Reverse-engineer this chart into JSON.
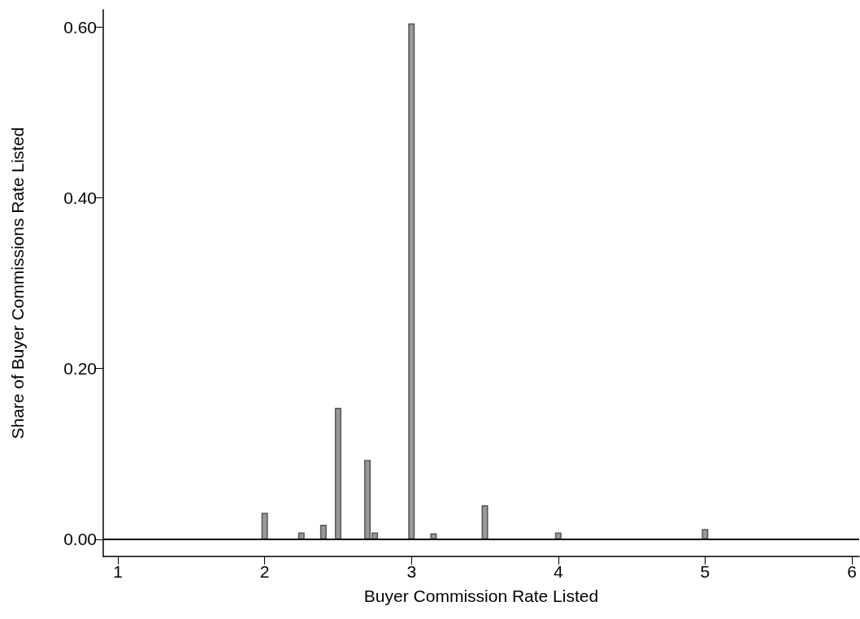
{
  "chart_data": {
    "type": "bar",
    "xlabel": "Buyer Commission Rate Listed",
    "ylabel": "Share of Buyer Commissions Rate Listed",
    "x": [
      2,
      2.25,
      2.4,
      2.5,
      2.7,
      2.75,
      3,
      3.15,
      3.5,
      4,
      5
    ],
    "values": [
      0.031,
      0.008,
      0.017,
      0.154,
      0.093,
      0.008,
      0.604,
      0.007,
      0.04,
      0.008,
      0.012
    ],
    "color": "#999999",
    "xlim": [
      0.9,
      6.05
    ],
    "xticks": [
      1,
      2,
      3,
      4,
      5,
      6
    ],
    "ylim": [
      -0.02,
      0.62
    ],
    "yticks": [
      {
        "value": 0,
        "label": "0.00"
      },
      {
        "value": 0.2,
        "label": "0.20"
      },
      {
        "value": 0.4,
        "label": "0.40"
      },
      {
        "value": 0.6,
        "label": "0.60"
      }
    ],
    "ref_lines": [
      {
        "axis": "y",
        "value": 0,
        "color": "#000000"
      }
    ],
    "grid": false
  }
}
